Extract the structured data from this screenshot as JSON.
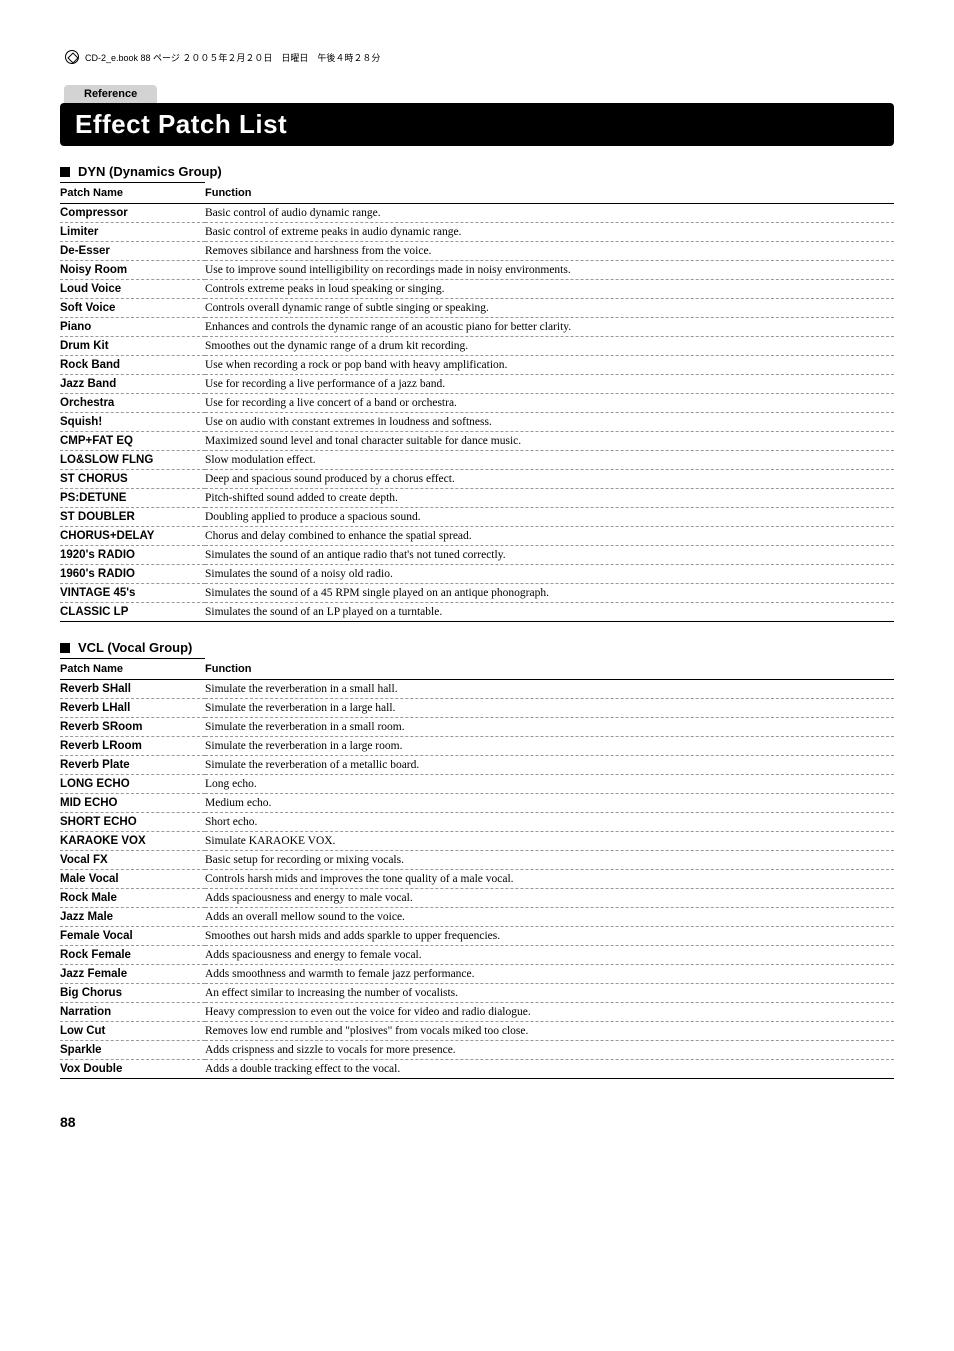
{
  "meta_text": "CD-2_e.book 88 ページ ２００５年２月２０日　日曜日　午後４時２８分",
  "reference_label": "Reference",
  "page_title": "Effect Patch List",
  "page_number": "88",
  "col_headers": {
    "name": "Patch Name",
    "func": "Function"
  },
  "groups": [
    {
      "title": "DYN (Dynamics Group)",
      "rows": [
        {
          "name": "Compressor",
          "func": "Basic control of audio dynamic range."
        },
        {
          "name": "Limiter",
          "func": "Basic control of extreme peaks in audio dynamic range."
        },
        {
          "name": "De-Esser",
          "func": "Removes sibilance and harshness from the voice."
        },
        {
          "name": "Noisy Room",
          "func": "Use to improve sound intelligibility on recordings made in noisy environments."
        },
        {
          "name": "Loud Voice",
          "func": "Controls extreme peaks in loud speaking or singing."
        },
        {
          "name": "Soft Voice",
          "func": "Controls overall dynamic range of subtle singing or speaking."
        },
        {
          "name": "Piano",
          "func": "Enhances and controls the dynamic range of an acoustic piano for better clarity."
        },
        {
          "name": "Drum Kit",
          "func": "Smoothes out the dynamic range of a drum kit recording."
        },
        {
          "name": "Rock Band",
          "func": "Use when recording a rock or pop band with heavy amplification."
        },
        {
          "name": "Jazz Band",
          "func": "Use for recording a live performance of a jazz band."
        },
        {
          "name": "Orchestra",
          "func": "Use for recording a live concert of a band or orchestra."
        },
        {
          "name": "Squish!",
          "func": "Use on audio with constant extremes in loudness and softness."
        },
        {
          "name": "CMP+FAT EQ",
          "func": "Maximized sound level and tonal character suitable for dance music."
        },
        {
          "name": "LO&SLOW FLNG",
          "func": "Slow modulation effect."
        },
        {
          "name": "ST CHORUS",
          "func": "Deep and spacious sound produced by a chorus effect."
        },
        {
          "name": "PS:DETUNE",
          "func": "Pitch-shifted sound added to create depth."
        },
        {
          "name": "ST DOUBLER",
          "func": "Doubling applied to produce a spacious sound."
        },
        {
          "name": "CHORUS+DELAY",
          "func": "Chorus and delay combined to enhance the spatial spread."
        },
        {
          "name": "1920's RADIO",
          "func": "Simulates the sound of an antique radio that's not tuned correctly."
        },
        {
          "name": "1960's RADIO",
          "func": "Simulates the sound of a noisy old radio."
        },
        {
          "name": "VINTAGE 45's",
          "func": "Simulates the sound of a 45 RPM single played on an antique phonograph."
        },
        {
          "name": "CLASSIC LP",
          "func": "Simulates the sound of an LP played on a turntable."
        }
      ]
    },
    {
      "title": "VCL (Vocal Group)",
      "rows": [
        {
          "name": "Reverb SHall",
          "func": "Simulate the reverberation in a small hall."
        },
        {
          "name": "Reverb LHall",
          "func": "Simulate the reverberation in a large hall."
        },
        {
          "name": "Reverb SRoom",
          "func": "Simulate the reverberation in a small room."
        },
        {
          "name": "Reverb LRoom",
          "func": "Simulate the reverberation in a large room."
        },
        {
          "name": "Reverb Plate",
          "func": "Simulate the reverberation of a metallic board."
        },
        {
          "name": "LONG ECHO",
          "func": "Long echo."
        },
        {
          "name": "MID ECHO",
          "func": "Medium echo."
        },
        {
          "name": "SHORT ECHO",
          "func": "Short echo."
        },
        {
          "name": "KARAOKE VOX",
          "func": "Simulate KARAOKE VOX."
        },
        {
          "name": "Vocal FX",
          "func": "Basic setup for recording or mixing vocals."
        },
        {
          "name": "Male Vocal",
          "func": "Controls harsh mids and improves the tone quality of a male vocal."
        },
        {
          "name": "Rock Male",
          "func": "Adds spaciousness and energy to male vocal."
        },
        {
          "name": "Jazz Male",
          "func": "Adds an overall mellow sound to the voice."
        },
        {
          "name": "Female Vocal",
          "func": "Smoothes out harsh mids and adds sparkle to upper frequencies."
        },
        {
          "name": "Rock Female",
          "func": "Adds spaciousness and energy to female vocal."
        },
        {
          "name": "Jazz Female",
          "func": "Adds smoothness and warmth to female jazz performance."
        },
        {
          "name": "Big Chorus",
          "func": "An effect similar to increasing the number of vocalists."
        },
        {
          "name": "Narration",
          "func": "Heavy compression to even out the voice for video and radio dialogue."
        },
        {
          "name": "Low Cut",
          "func": "Removes low end rumble and \"plosives\" from vocals miked too close."
        },
        {
          "name": "Sparkle",
          "func": "Adds crispness and sizzle to vocals for more presence."
        },
        {
          "name": "Vox Double",
          "func": "Adds a double tracking effect to the vocal."
        }
      ]
    }
  ]
}
